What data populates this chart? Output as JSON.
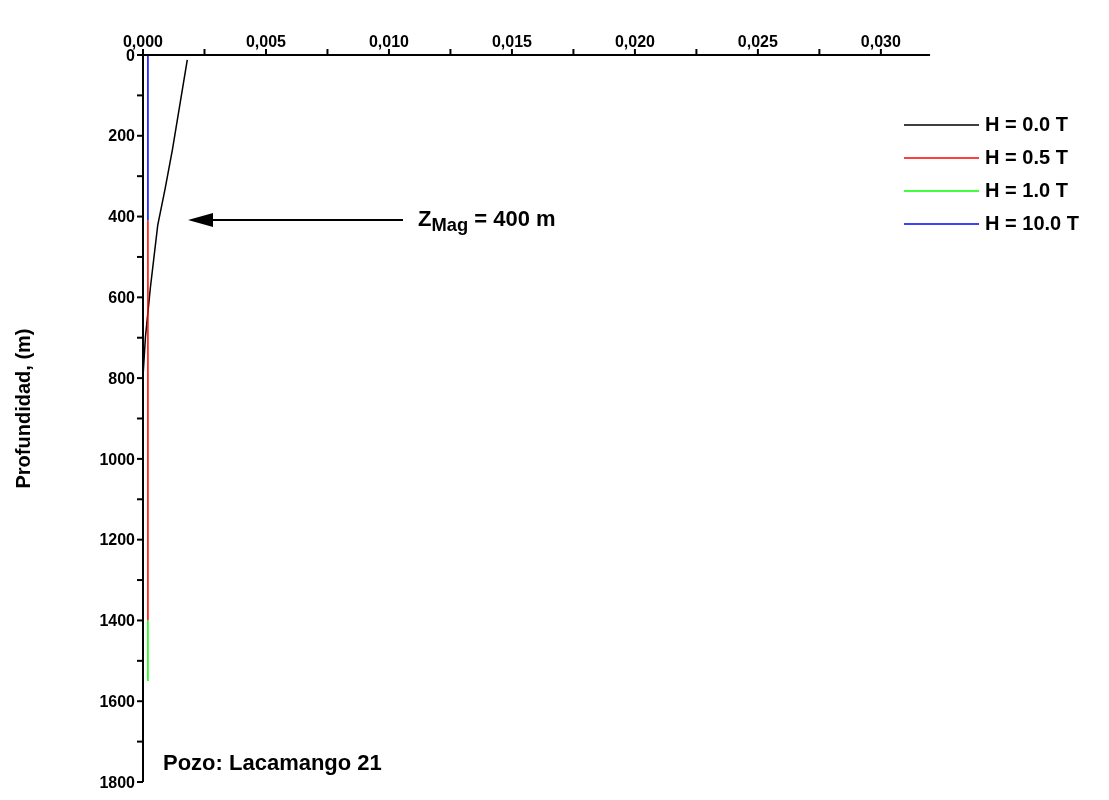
{
  "chart_data": {
    "type": "line",
    "ylabel": "Profundidad, (m)",
    "xlim": [
      0,
      0.032
    ],
    "xticks": [
      {
        "value": 0,
        "label": "0,000"
      },
      {
        "value": 0.0025,
        "label": null
      },
      {
        "value": 0.005,
        "label": "0,005"
      },
      {
        "value": 0.0075,
        "label": null
      },
      {
        "value": 0.01,
        "label": "0,010"
      },
      {
        "value": 0.0125,
        "label": null
      },
      {
        "value": 0.015,
        "label": "0,015"
      },
      {
        "value": 0.0175,
        "label": null
      },
      {
        "value": 0.02,
        "label": "0,020"
      },
      {
        "value": 0.0225,
        "label": null
      },
      {
        "value": 0.025,
        "label": "0,025"
      },
      {
        "value": 0.0275,
        "label": null
      },
      {
        "value": 0.03,
        "label": "0,030"
      }
    ],
    "ylim": [
      1800,
      0
    ],
    "yticks": [
      0,
      {
        "value": 100,
        "label": null
      },
      200,
      {
        "value": 300,
        "label": null
      },
      400,
      {
        "value": 500,
        "label": null
      },
      600,
      {
        "value": 700,
        "label": null
      },
      800,
      {
        "value": 900,
        "label": null
      },
      1000,
      {
        "value": 1100,
        "label": null
      },
      1200,
      {
        "value": 1300,
        "label": null
      },
      1400,
      {
        "value": 1500,
        "label": null
      },
      1600,
      {
        "value": 1700,
        "label": null
      },
      1800
    ],
    "legend": "top right",
    "line_style": "solid",
    "series": [
      {
        "name": "H = 0.0 T",
        "color": "#000000",
        "x": [
          0.0018,
          0.0016,
          0.0012,
          0.0009,
          0.0006,
          0.0003,
          0.0001,
          0,
          0,
          0
        ],
        "values": [
          12,
          86,
          233,
          331,
          421,
          576,
          698,
          796,
          850,
          870
        ]
      },
      {
        "name": "H = 0.5 T",
        "color": "#ff0000",
        "x": [
          0.0002,
          0.0002
        ],
        "values": [
          410,
          1400
        ]
      },
      {
        "name": "H = 1.0 T",
        "color": "#00ff00",
        "x": [
          0.0002,
          0.0002
        ],
        "values": [
          1400,
          1550
        ]
      },
      {
        "name": "H = 10.0 T",
        "color": "#0000ff",
        "x": [
          0.0002,
          0.0002
        ],
        "values": [
          0,
          410
        ]
      }
    ],
    "annotations": [
      "Z$_{Mag}$ = 400 m",
      "Pozo: Lacamango 21"
    ]
  }
}
